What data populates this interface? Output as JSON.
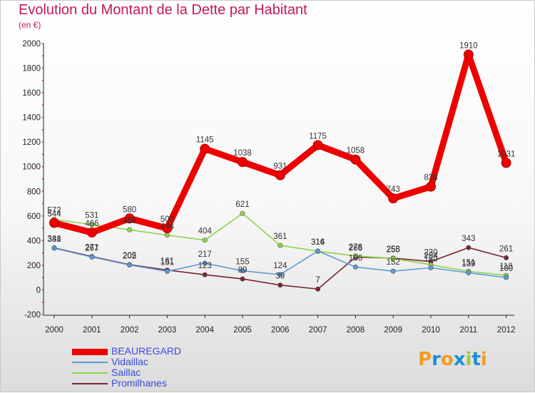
{
  "header": {
    "title": "Evolution du Montant de la Dette par Habitant",
    "unit": "(en €)"
  },
  "brand": {
    "letters": [
      "P",
      "r",
      "o",
      "x",
      "i",
      "t",
      "i"
    ],
    "colors": [
      "#f59b21",
      "#1c8fd6",
      "#f59b21",
      "#1c8fd6",
      "#9ccc2d",
      "#1c8fd6",
      "#f59b21"
    ]
  },
  "chart_data": {
    "type": "line",
    "title": "Evolution du Montant de la Dette par Habitant",
    "subtitle": "(en €)",
    "xlabel": "",
    "ylabel": "",
    "categories": [
      "2000",
      "2001",
      "2002",
      "2003",
      "2004",
      "2005",
      "2006",
      "2007",
      "2008",
      "2009",
      "2010",
      "2011",
      "2012"
    ],
    "ylim": [
      -200,
      2000
    ],
    "yticks": [
      -200,
      0,
      200,
      400,
      600,
      800,
      1000,
      1200,
      1400,
      1600,
      1800,
      2000
    ],
    "grid": false,
    "legend_position": "bottom-left",
    "series": [
      {
        "name": "BEAUREGARD",
        "color": "#ee0000",
        "values": [
          544,
          466,
          580,
          500,
          1145,
          1038,
          931,
          1175,
          1058,
          743,
          838,
          1910,
          1031
        ],
        "labels": [
          "544",
          "466",
          "580",
          "500",
          "1145",
          "1038",
          "931",
          "1175",
          "1058",
          "743",
          "838",
          "1910",
          "1031"
        ]
      },
      {
        "name": "Vidaillac",
        "color": "#5b9bd5",
        "values": [
          338,
          267,
          202,
          151,
          217,
          155,
          124,
          316,
          186,
          152,
          180,
          139,
          100
        ],
        "labels": [
          "338",
          "267",
          "202",
          "151",
          "217",
          "155",
          "124",
          "316",
          "186",
          "152",
          "180",
          "139",
          "100"
        ]
      },
      {
        "name": "Saillac",
        "color": "#8fd44a",
        "values": [
          572,
          531,
          488,
          444,
          404,
          621,
          361,
          314,
          276,
          255,
          204,
          151,
          118
        ],
        "labels": [
          "572",
          "531",
          "488",
          "444",
          "404",
          "621",
          "361",
          "314",
          "276",
          "255",
          "204",
          "151",
          "118"
        ]
      },
      {
        "name": "Promilhanes",
        "color": "#7a2430",
        "values": [
          341,
          271,
          205,
          161,
          123,
          89,
          39,
          7,
          266,
          258,
          230,
          343,
          261
        ],
        "labels": [
          "341",
          "271",
          "205",
          "161",
          "123",
          "89",
          "39",
          "7",
          "266",
          "258",
          "230",
          "343",
          "261"
        ]
      }
    ]
  }
}
